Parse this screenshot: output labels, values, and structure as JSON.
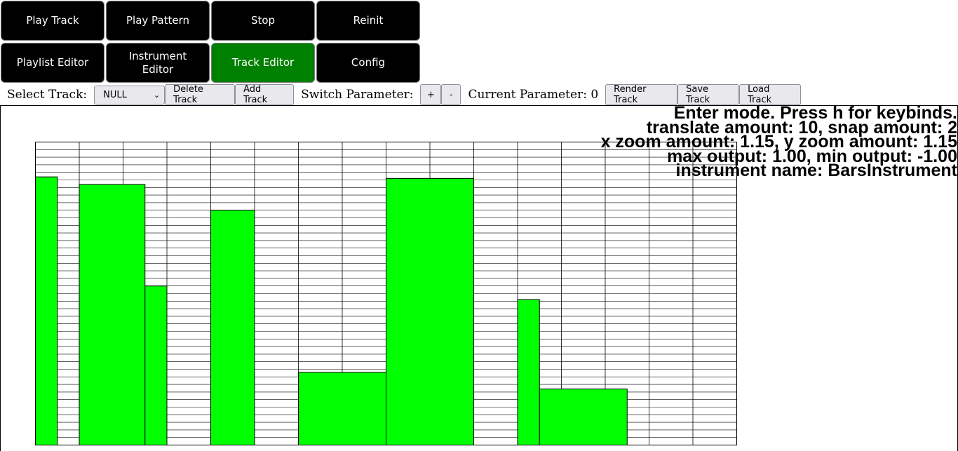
{
  "nav": {
    "play_track": "Play Track",
    "play_pattern": "Play Pattern",
    "stop": "Stop",
    "reinit": "Reinit",
    "playlist_editor": "Playlist Editor",
    "instrument_editor": "Instrument Editor",
    "track_editor": "Track Editor",
    "config": "Config",
    "active": "track_editor",
    "active_color": "#008000",
    "button_color": "#000000"
  },
  "toolbar": {
    "select_track_label": "Select Track:",
    "select_track_value": "NULL",
    "delete_track": "Delete Track",
    "add_track": "Add Track",
    "switch_parameter_label": "Switch Parameter:",
    "plus": "+",
    "minus": "-",
    "current_parameter_label": "Current Parameter: 0",
    "render_track": "Render Track",
    "save_track": "Save Track",
    "load_track": "Load Track"
  },
  "info": {
    "line1": "Enter mode. Press h for keybinds.",
    "line2": "translate amount: 10, snap amount: 2",
    "line3": "x zoom amount: 1.15, y zoom amount: 1.15",
    "line4": "max output: 1.00, min output: -1.00",
    "line5": "instrument name: BarsInstrument"
  },
  "editor": {
    "bar_color": "#00ff00",
    "grid_columns": 16,
    "grid_rows": 40,
    "output_range": [
      -1.0,
      1.0
    ],
    "notes": [
      {
        "start": 0,
        "length": 0.5,
        "value": 0.77
      },
      {
        "start": 1,
        "length": 1.5,
        "value": 0.72
      },
      {
        "start": 2.5,
        "length": 0.5,
        "value": 0.05
      },
      {
        "start": 4,
        "length": 1,
        "value": 0.55
      },
      {
        "start": 6,
        "length": 2,
        "value": -0.52
      },
      {
        "start": 8,
        "length": 2,
        "value": 0.76
      },
      {
        "start": 11,
        "length": 0.5,
        "value": -0.04
      },
      {
        "start": 11.5,
        "length": 2,
        "value": -0.63
      }
    ]
  }
}
